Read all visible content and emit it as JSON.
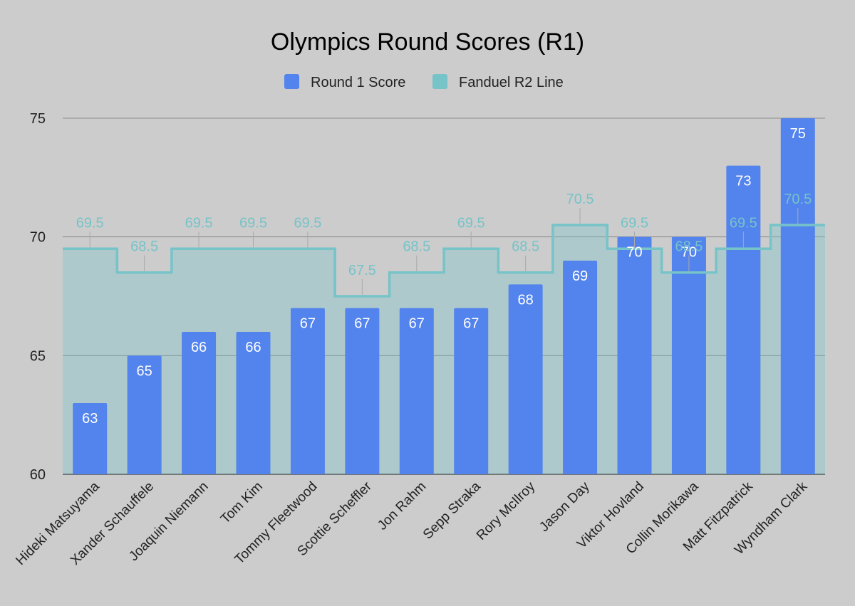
{
  "chart_data": {
    "type": "bar",
    "title": "Olympics Round Scores (R1)",
    "xlabel": "",
    "ylabel": "",
    "ylim": [
      60,
      75
    ],
    "yticks": [
      60,
      65,
      70,
      75
    ],
    "grid": true,
    "legend_position": "top",
    "categories": [
      "Hideki Matsuyama",
      "Xander Schauffele",
      "Joaquin Niemann",
      "Tom Kim",
      "Tommy Fleetwood",
      "Scottie Scheffler",
      "Jon Rahm",
      "Sepp Straka",
      "Rory McIlroy",
      "Jason Day",
      "Viktor Hovland",
      "Collin Morikawa",
      "Matt Fitzpatrick",
      "Wyndham Clark"
    ],
    "series": [
      {
        "name": "Round 1 Score",
        "type": "bar",
        "color": "#5383ec",
        "values": [
          63,
          65,
          66,
          66,
          67,
          67,
          67,
          67,
          68,
          69,
          70,
          70,
          73,
          75
        ]
      },
      {
        "name": "Fanduel R2 Line",
        "type": "stepped-area",
        "color": "#76c3c8",
        "values": [
          69.5,
          68.5,
          69.5,
          69.5,
          69.5,
          67.5,
          68.5,
          69.5,
          68.5,
          70.5,
          69.5,
          68.5,
          69.5,
          70.5
        ]
      }
    ]
  }
}
